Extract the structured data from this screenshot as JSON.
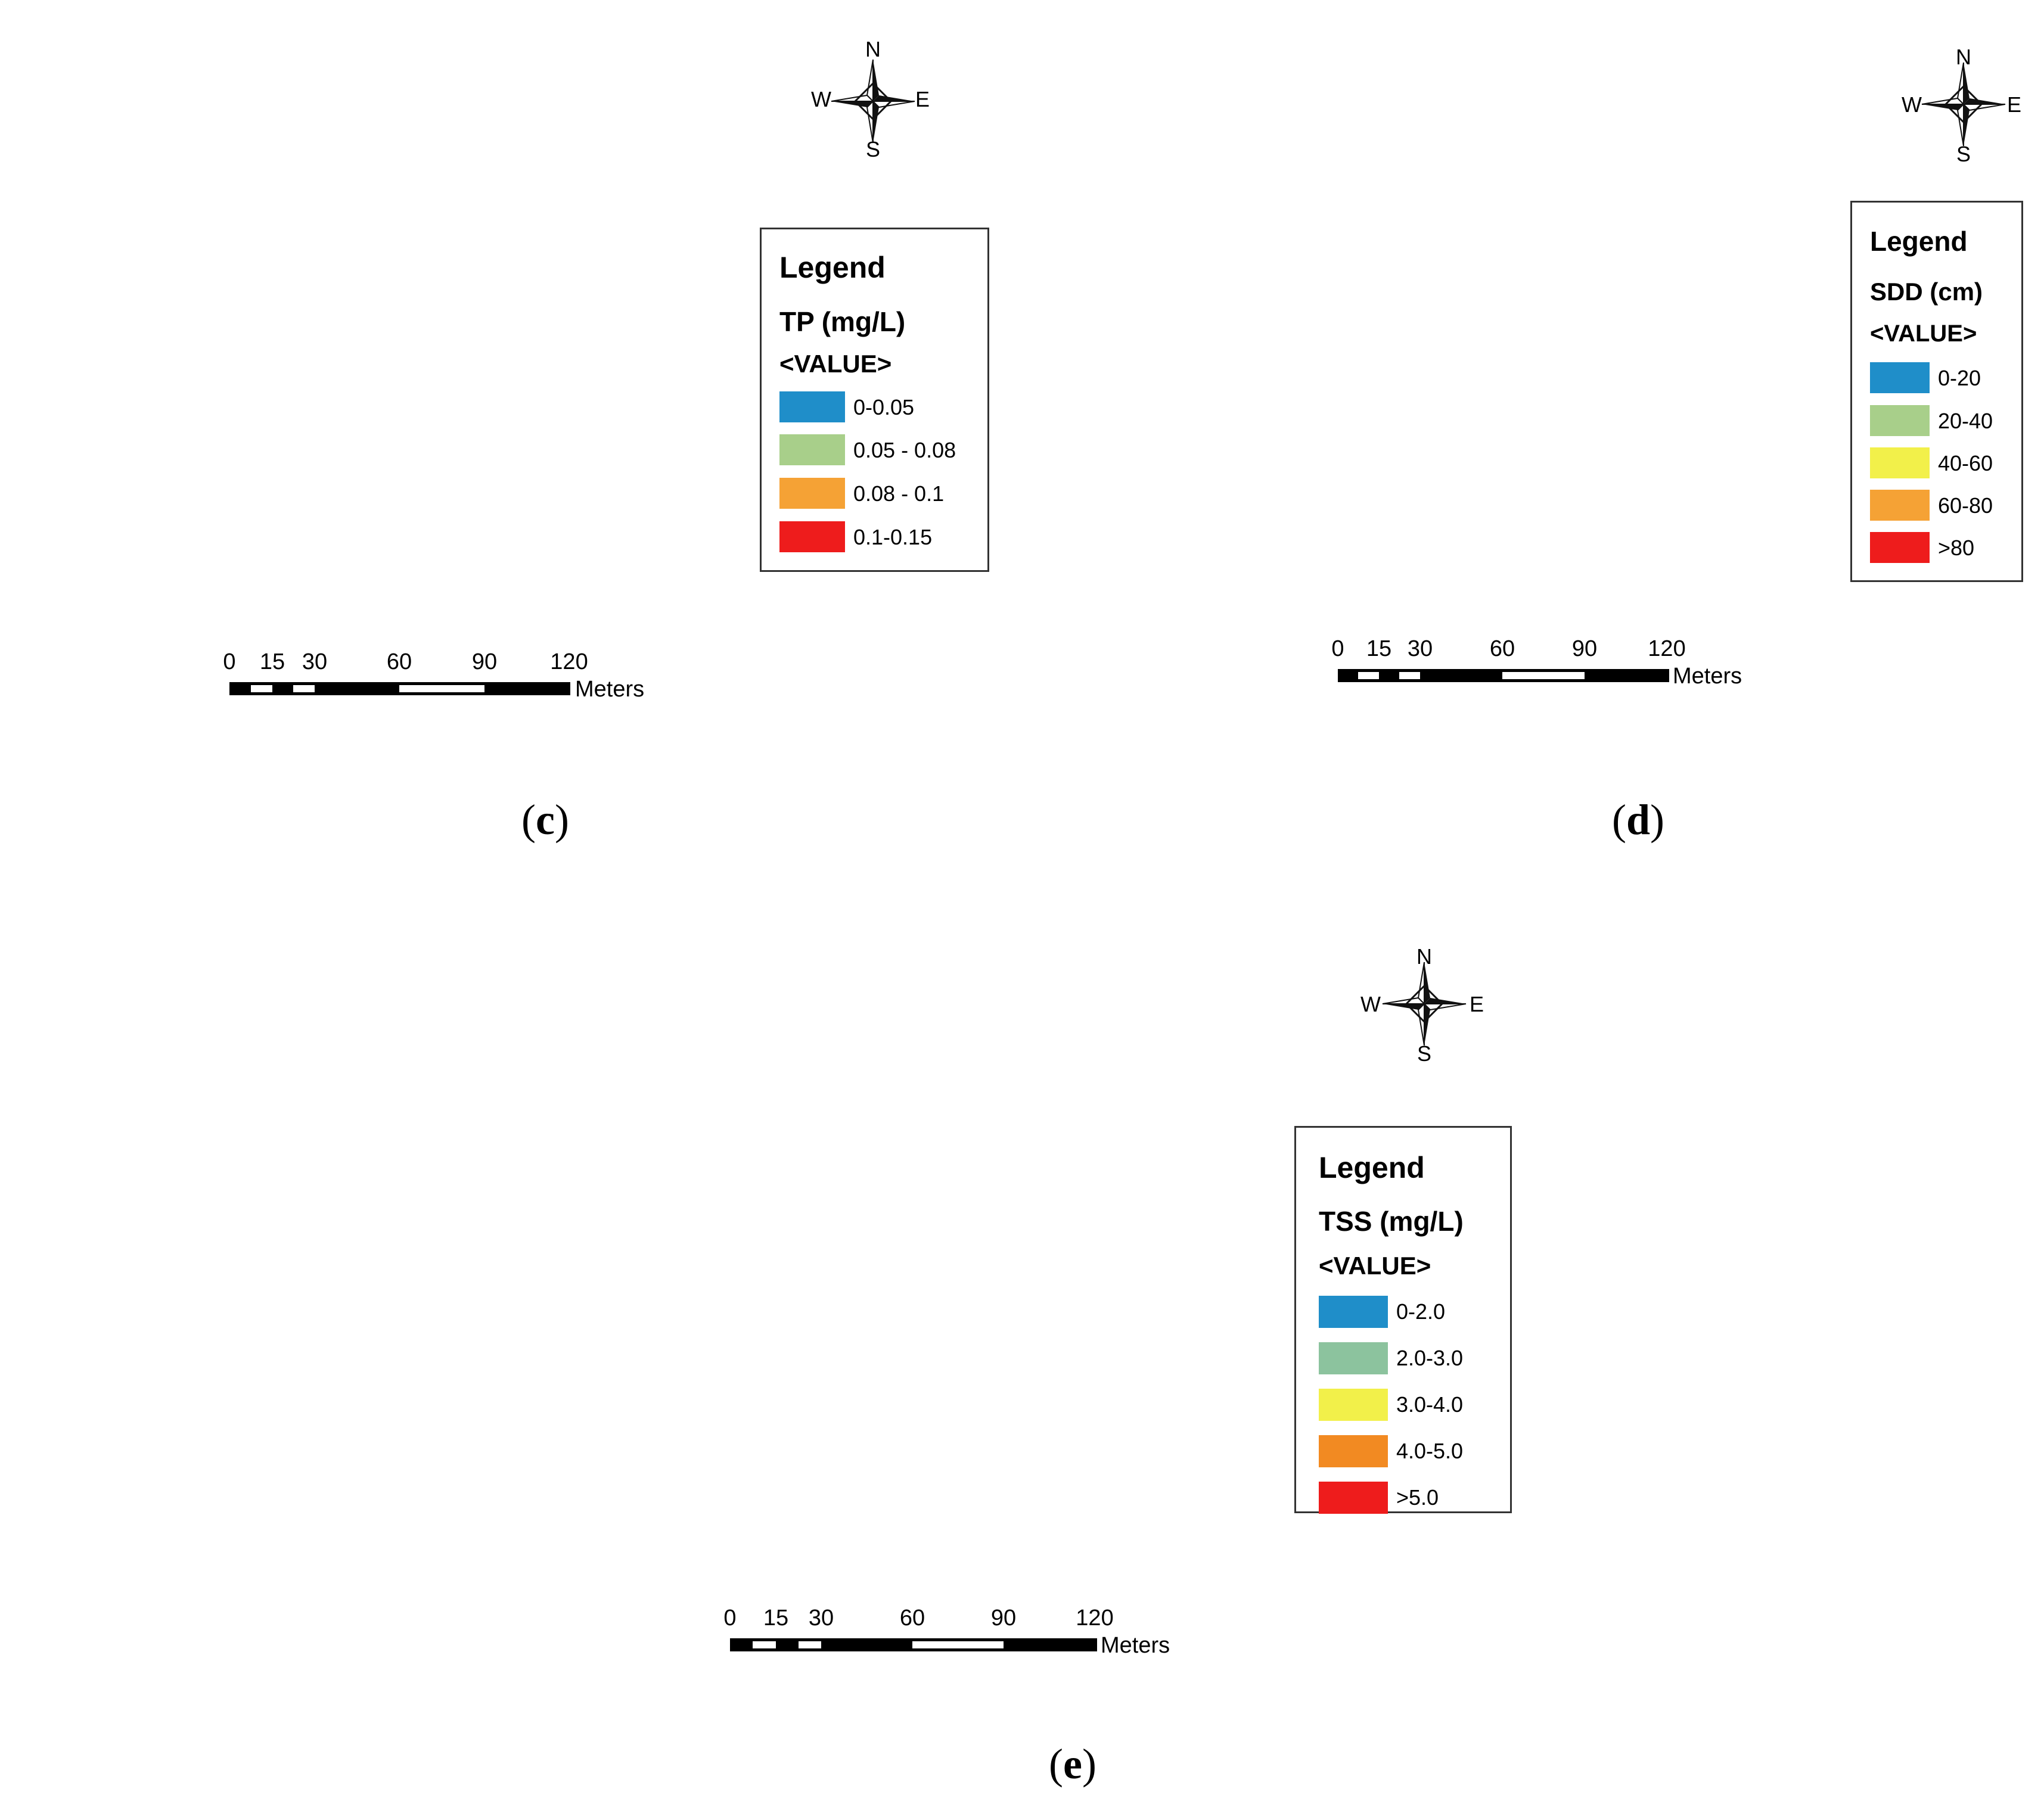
{
  "colors": {
    "blue": "#1f8ec9",
    "light_green": "#a8cf8a",
    "sage_green": "#8cc39e",
    "yellow": "#f2f04a",
    "orange": "#f5a235",
    "orange_deep": "#f28a22",
    "red": "#ee1c1c"
  },
  "compass": {
    "north": "N",
    "south": "S",
    "east": "E",
    "west": "W"
  },
  "scalebar": {
    "ticks": [
      "0",
      "15",
      "30",
      "60",
      "90",
      "120"
    ],
    "unit": "Meters"
  },
  "legend_heading": "Legend",
  "value_heading": "<VALUE>",
  "panels": {
    "c": {
      "label_open": "(",
      "label_letter": "c",
      "label_close": ")",
      "field": "TP (mg/L)",
      "classes": [
        {
          "label": "0-0.05",
          "color": "#1f8ec9"
        },
        {
          "label": "0.05 - 0.08",
          "color": "#a8cf8a"
        },
        {
          "label": "0.08 - 0.1",
          "color": "#f5a235"
        },
        {
          "label": "0.1-0.15",
          "color": "#ee1c1c"
        }
      ]
    },
    "d": {
      "label_open": "(",
      "label_letter": "d",
      "label_close": ")",
      "field": "SDD (cm)",
      "classes": [
        {
          "label": "0-20",
          "color": "#1f8ec9"
        },
        {
          "label": "20-40",
          "color": "#a8cf8a"
        },
        {
          "label": "40-60",
          "color": "#f2f04a"
        },
        {
          "label": "60-80",
          "color": "#f5a235"
        },
        {
          "label": ">80",
          "color": "#ee1c1c"
        }
      ]
    },
    "e": {
      "label_open": "(",
      "label_letter": "e",
      "label_close": ")",
      "field": "TSS (mg/L)",
      "classes": [
        {
          "label": "0-2.0",
          "color": "#1f8ec9"
        },
        {
          "label": "2.0-3.0",
          "color": "#8cc39e"
        },
        {
          "label": "3.0-4.0",
          "color": "#f2f04a"
        },
        {
          "label": "4.0-5.0",
          "color": "#f28a22"
        },
        {
          "label": ">5.0",
          "color": "#ee1c1c"
        }
      ]
    }
  }
}
